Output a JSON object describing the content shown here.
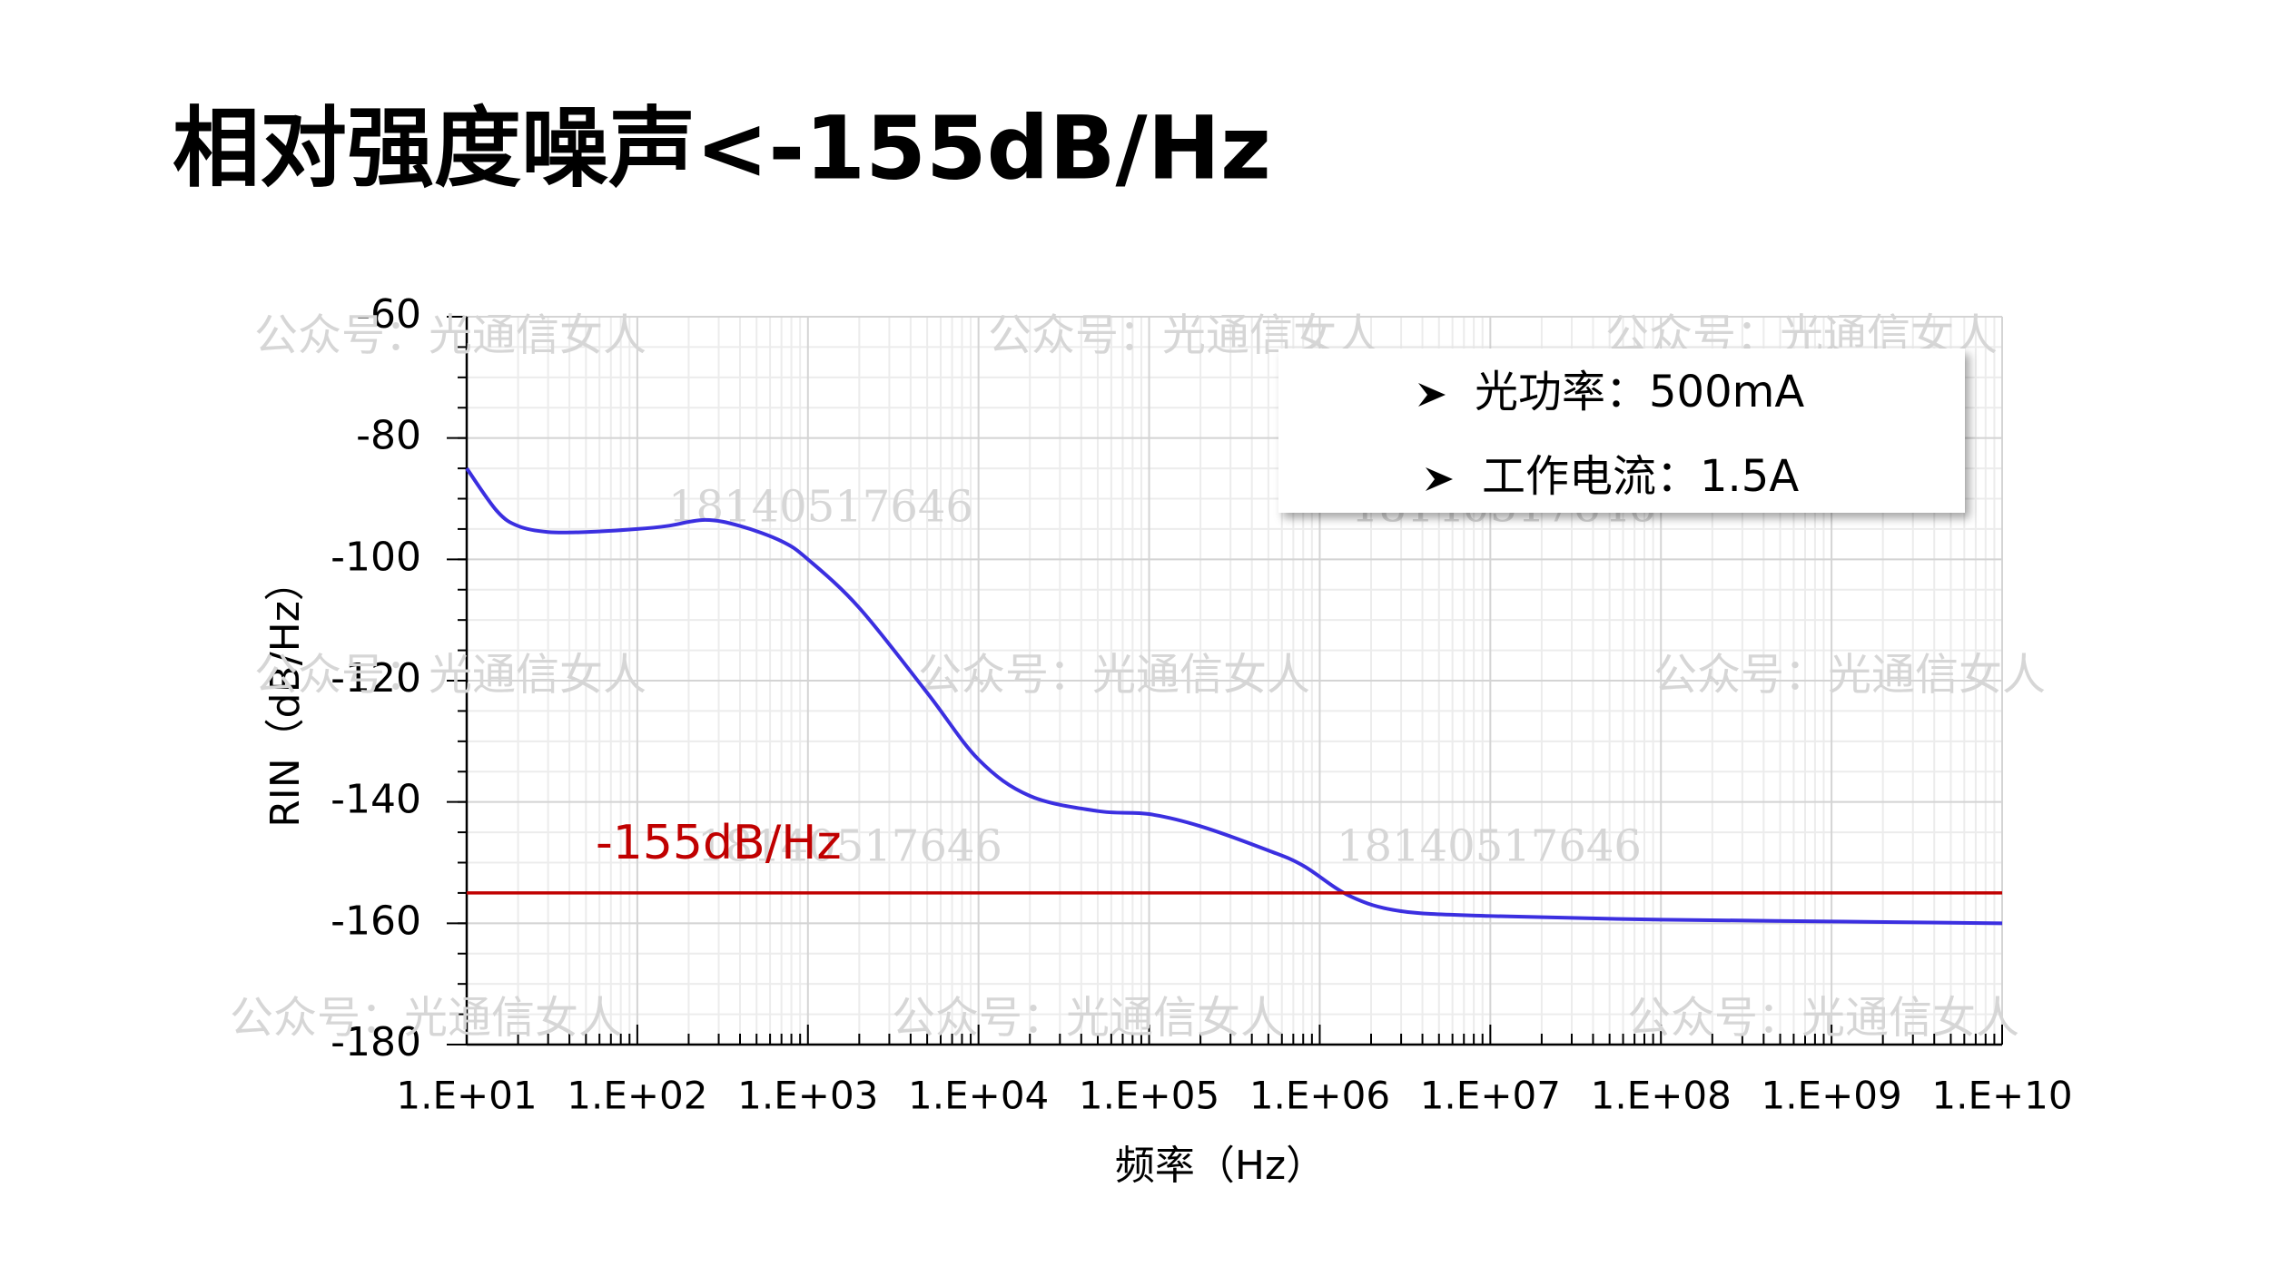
{
  "title": "相对强度噪声<-155dB/Hz",
  "chart_data": {
    "type": "line",
    "x_label": "频率（Hz）",
    "y_label": "RIN（dB/Hz）",
    "xscale": "log",
    "xlim": [
      10,
      10000000000
    ],
    "ylim": [
      -180,
      -60
    ],
    "xticks": [
      {
        "value": 10,
        "label": "1.E+01"
      },
      {
        "value": 100,
        "label": "1.E+02"
      },
      {
        "value": 1000,
        "label": "1.E+03"
      },
      {
        "value": 10000,
        "label": "1.E+04"
      },
      {
        "value": 100000,
        "label": "1.E+05"
      },
      {
        "value": 1000000,
        "label": "1.E+06"
      },
      {
        "value": 10000000,
        "label": "1.E+07"
      },
      {
        "value": 100000000,
        "label": "1.E+08"
      },
      {
        "value": 1000000000,
        "label": "1.E+09"
      },
      {
        "value": 10000000000,
        "label": "1.E+10"
      }
    ],
    "yticks": [
      -60,
      -80,
      -100,
      -120,
      -140,
      -160,
      -180
    ],
    "grid": true,
    "series": [
      {
        "color": "#3b2fe0",
        "x": [
          10,
          15,
          20,
          30,
          50,
          100,
          150,
          250,
          400,
          700,
          1000,
          2000,
          5000,
          10000,
          20000,
          50000,
          100000,
          200000,
          500000,
          800000,
          1500000,
          3000000,
          10000000,
          100000000,
          1000000000,
          10000000000
        ],
        "values": [
          -85,
          -92,
          -94.5,
          -95.5,
          -95.5,
          -95,
          -94.5,
          -93.5,
          -94.5,
          -97,
          -100,
          -108,
          -122,
          -133,
          -139,
          -141.5,
          -142,
          -144,
          -148,
          -150.5,
          -155.5,
          -158,
          -158.8,
          -159.4,
          -159.7,
          -160
        ]
      },
      {
        "color": "#c00000",
        "x": [
          10,
          10000000000
        ],
        "values": [
          -155,
          -155
        ]
      }
    ],
    "annotations": [
      {
        "text": "-155dB/Hz",
        "color": "#c00000"
      }
    ],
    "legend_box": [
      "光功率：500mA",
      "工作电流：1.5A"
    ],
    "watermarks": [
      "公众号：光通信女人",
      "18140517646"
    ]
  }
}
